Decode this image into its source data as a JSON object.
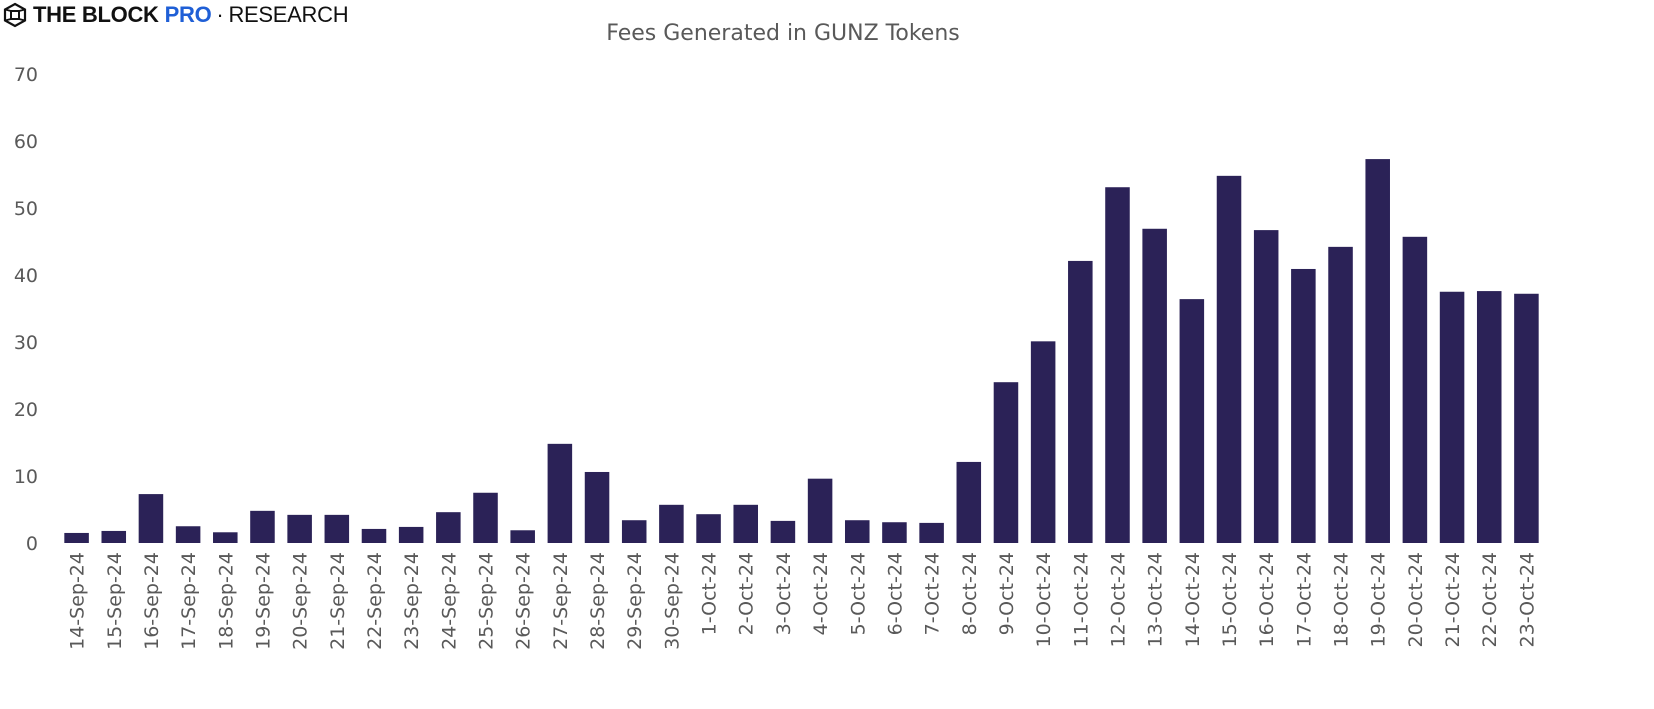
{
  "logo": {
    "brand": "THE BLOCK",
    "pro": "PRO",
    "separator": "·",
    "section": "RESEARCH"
  },
  "colors": {
    "bar": "#2b2257",
    "text": "#595959",
    "pro_accent": "#1f5fd6"
  },
  "chart_data": {
    "type": "bar",
    "title": "Fees Generated in GUNZ Tokens",
    "xlabel": "",
    "ylabel": "",
    "ylim": [
      0,
      70
    ],
    "yticks": [
      0,
      10,
      20,
      30,
      40,
      50,
      60,
      70
    ],
    "grid": false,
    "categories": [
      "14-Sep-24",
      "15-Sep-24",
      "16-Sep-24",
      "17-Sep-24",
      "18-Sep-24",
      "19-Sep-24",
      "20-Sep-24",
      "21-Sep-24",
      "22-Sep-24",
      "23-Sep-24",
      "24-Sep-24",
      "25-Sep-24",
      "26-Sep-24",
      "27-Sep-24",
      "28-Sep-24",
      "29-Sep-24",
      "30-Sep-24",
      "1-Oct-24",
      "2-Oct-24",
      "3-Oct-24",
      "4-Oct-24",
      "5-Oct-24",
      "6-Oct-24",
      "7-Oct-24",
      "8-Oct-24",
      "9-Oct-24",
      "10-Oct-24",
      "11-Oct-24",
      "12-Oct-24",
      "13-Oct-24",
      "14-Oct-24",
      "15-Oct-24",
      "16-Oct-24",
      "17-Oct-24",
      "18-Oct-24",
      "19-Oct-24",
      "20-Oct-24",
      "21-Oct-24",
      "22-Oct-24",
      "23-Oct-24"
    ],
    "values": [
      1.5,
      1.8,
      7.3,
      2.5,
      1.6,
      4.8,
      4.2,
      4.2,
      2.1,
      2.4,
      4.6,
      7.5,
      1.9,
      14.8,
      10.6,
      3.4,
      5.7,
      4.3,
      5.7,
      3.3,
      9.6,
      3.4,
      3.1,
      3.0,
      12.1,
      24.0,
      30.1,
      42.1,
      53.1,
      46.9,
      36.4,
      54.8,
      46.7,
      40.9,
      44.2,
      57.3,
      45.7,
      37.5,
      37.6,
      37.2
    ]
  }
}
